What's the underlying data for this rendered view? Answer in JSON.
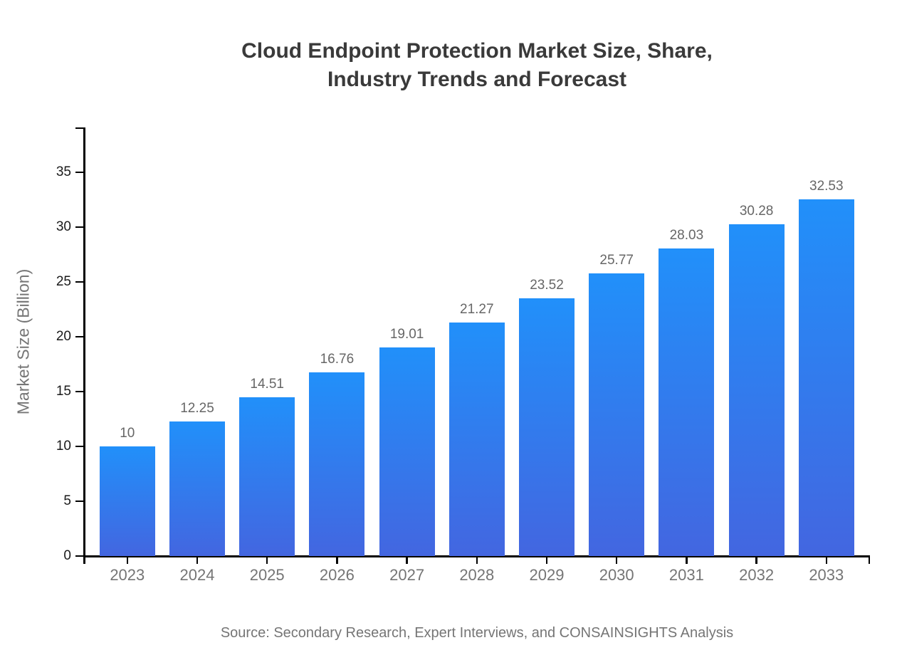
{
  "title": {
    "line1": "Cloud Endpoint Protection Market Size, Share,",
    "line2": "Industry Trends and Forecast"
  },
  "source": "Source: Secondary Research, Expert Interviews, and CONSAINSIGHTS Analysis",
  "colors": {
    "bar_gradient_top": "#2190fa",
    "bar_gradient_bottom": "#4366e0",
    "axis": "#000000",
    "y_tick_label": "#1a1a1a",
    "x_tick_label": "#757575",
    "value_label": "#666666",
    "title_text": "#3a3a3a",
    "muted_text": "#757575",
    "background": "#ffffff"
  },
  "chart_data": {
    "type": "bar",
    "title": "Cloud Endpoint Protection Market Size, Share, Industry Trends and Forecast",
    "categories": [
      "2023",
      "2024",
      "2025",
      "2026",
      "2027",
      "2028",
      "2029",
      "2030",
      "2031",
      "2032",
      "2033"
    ],
    "values": [
      10,
      12.25,
      14.51,
      16.76,
      19.01,
      21.27,
      23.52,
      25.77,
      28.03,
      30.28,
      32.53
    ],
    "xlabel": "",
    "ylabel": "Market Size (Billion)",
    "ylim": [
      0,
      39
    ],
    "yticks": [
      0,
      5,
      10,
      15,
      20,
      25,
      30,
      35
    ],
    "grid": false,
    "legend": "none",
    "data_labels_shown": true,
    "bar_color_style": "vertical gradient, bright blue top to royal blue bottom"
  }
}
